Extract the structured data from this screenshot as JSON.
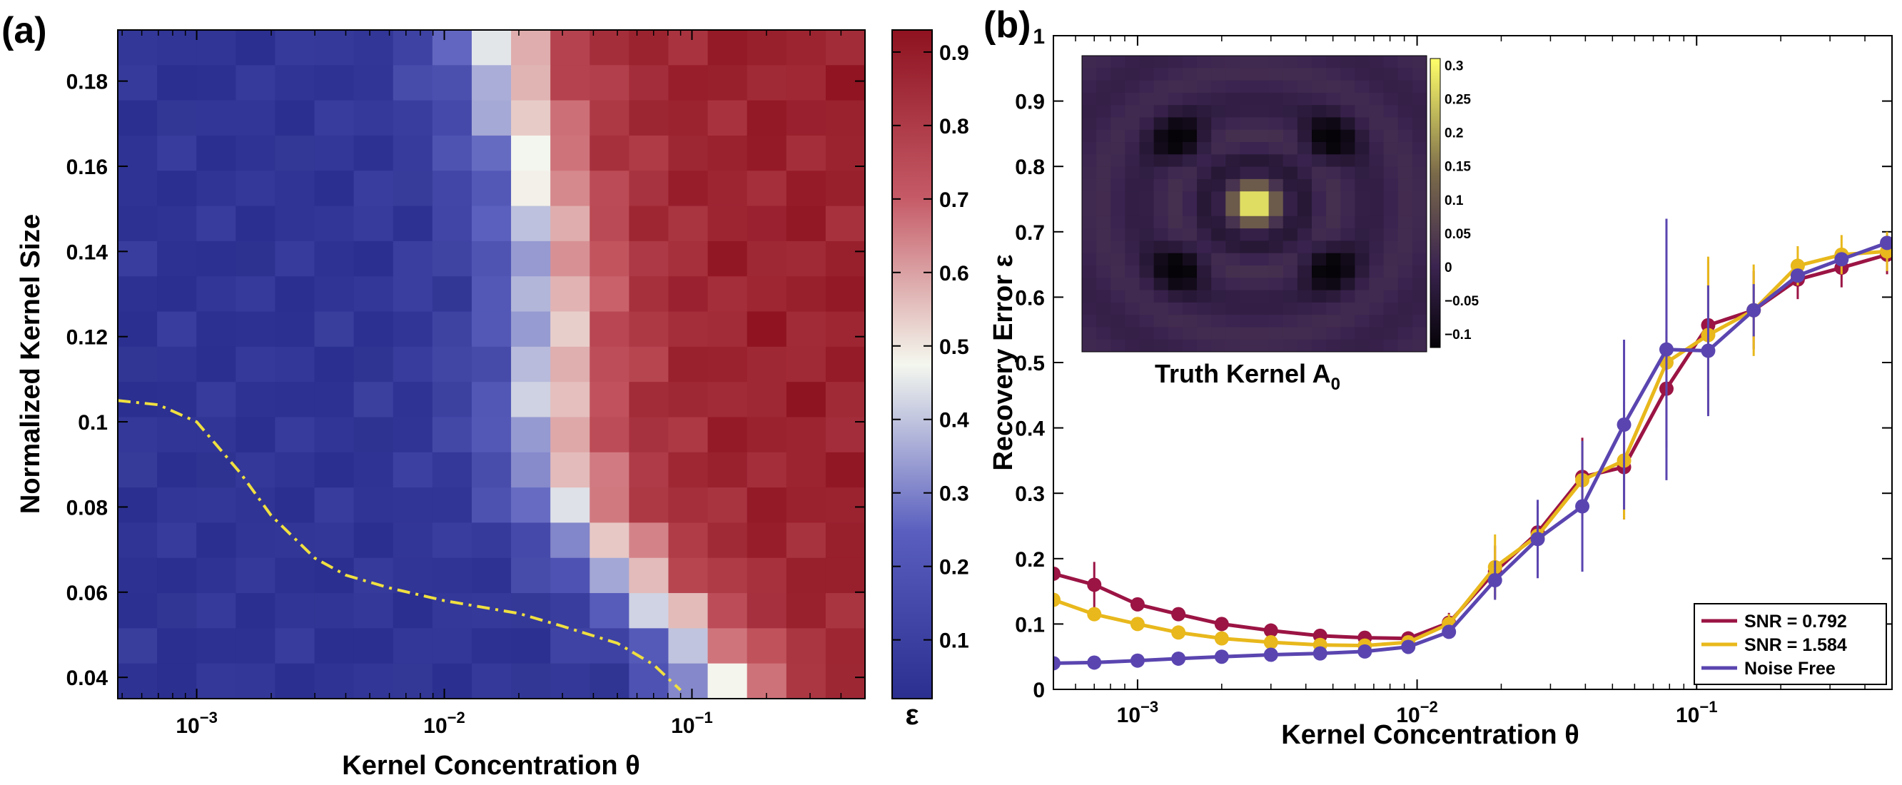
{
  "panel_labels": {
    "a": "(a)",
    "b": "(b)"
  },
  "colors": {
    "heat_low": "#2b2f8f",
    "heat_mid": "#f4f7ee",
    "heat_high": "#8e1220",
    "snr_0792": "#9b1444",
    "snr_1584": "#e8b81c",
    "noise_free": "#5a45b0",
    "threshold_curve": "#f0e040"
  },
  "chart_data": [
    {
      "type": "heatmap",
      "panel": "(a)",
      "xlabel": "Kernel Concentration θ",
      "ylabel": "Normalized Kernel Size",
      "xscale": "log",
      "xlim": [
        0.00048,
        0.5
      ],
      "ylim": [
        0.035,
        0.192
      ],
      "x_ticks": [
        {
          "value": 0.001,
          "base": "10",
          "exp": "−3"
        },
        {
          "value": 0.01,
          "base": "10",
          "exp": "−2"
        },
        {
          "value": 0.1,
          "base": "10",
          "exp": "−1"
        }
      ],
      "y_ticks": [
        "0.04",
        "0.06",
        "0.08",
        "0.1",
        "0.12",
        "0.14",
        "0.16",
        "0.18"
      ],
      "colorbar": {
        "label": "ε",
        "ticks": [
          "0.1",
          "0.2",
          "0.3",
          "0.4",
          "0.5",
          "0.6",
          "0.7",
          "0.8",
          "0.9"
        ],
        "range": [
          0.02,
          0.93
        ]
      },
      "grid_cols": 19,
      "grid_rows": 19,
      "transition": {
        "kernel_size": [
          0.04,
          0.06,
          0.08,
          0.1,
          0.12,
          0.14,
          0.16,
          0.18,
          0.19
        ],
        "theta": [
          0.13,
          0.06,
          0.032,
          0.025,
          0.027,
          0.026,
          0.022,
          0.018,
          0.016
        ],
        "width_decades": 0.38
      },
      "threshold_curve": {
        "theta": [
          0.00048,
          0.0007,
          0.001,
          0.0015,
          0.002,
          0.003,
          0.004,
          0.006,
          0.01,
          0.02,
          0.03,
          0.05,
          0.07,
          0.09
        ],
        "kernel_size": [
          0.105,
          0.104,
          0.1,
          0.088,
          0.078,
          0.068,
          0.064,
          0.061,
          0.058,
          0.055,
          0.052,
          0.048,
          0.043,
          0.037
        ]
      }
    },
    {
      "type": "line",
      "panel": "(b)",
      "xlabel": "Kernel Concentration θ",
      "ylabel": "Recovery Error ε",
      "xscale": "log",
      "xlim": [
        0.0005,
        0.5
      ],
      "ylim": [
        0,
        1
      ],
      "x_ticks": [
        {
          "value": 0.001,
          "base": "10",
          "exp": "−3"
        },
        {
          "value": 0.01,
          "base": "10",
          "exp": "−2"
        },
        {
          "value": 0.1,
          "base": "10",
          "exp": "−1"
        }
      ],
      "y_ticks": [
        "0",
        "0.1",
        "0.2",
        "0.3",
        "0.4",
        "0.5",
        "0.6",
        "0.7",
        "0.8",
        "0.9",
        "1"
      ],
      "x": [
        0.0005,
        0.0007,
        0.001,
        0.0014,
        0.002,
        0.003,
        0.0045,
        0.0065,
        0.0093,
        0.013,
        0.019,
        0.027,
        0.039,
        0.055,
        0.078,
        0.11,
        0.16,
        0.23,
        0.33,
        0.48
      ],
      "series": [
        {
          "name": "SNR = 0.792",
          "color": "#9b1444",
          "values": [
            0.177,
            0.16,
            0.13,
            0.115,
            0.1,
            0.09,
            0.082,
            0.079,
            0.078,
            0.102,
            0.18,
            0.24,
            0.325,
            0.34,
            0.46,
            0.557,
            0.58,
            0.627,
            0.645,
            0.665
          ],
          "errors": [
            0,
            0.035,
            0,
            0,
            0,
            0,
            0,
            0,
            0,
            0.015,
            0.04,
            0.04,
            0.06,
            0.08,
            0.09,
            0.1,
            0.06,
            0.03,
            0.03,
            0.03
          ]
        },
        {
          "name": "SNR = 1.584",
          "color": "#e8b81c",
          "values": [
            0.137,
            0.115,
            0.1,
            0.087,
            0.078,
            0.072,
            0.068,
            0.067,
            0.072,
            0.1,
            0.187,
            0.235,
            0.32,
            0.35,
            0.5,
            0.542,
            0.58,
            0.648,
            0.665,
            0.67
          ],
          "errors": [
            0,
            0,
            0,
            0,
            0,
            0,
            0,
            0,
            0,
            0.015,
            0.05,
            0.04,
            0.06,
            0.09,
            0.12,
            0.12,
            0.07,
            0.03,
            0.03,
            0.03
          ]
        },
        {
          "name": "Noise Free",
          "color": "#5a45b0",
          "values": [
            0.04,
            0.041,
            0.044,
            0.047,
            0.05,
            0.053,
            0.055,
            0.058,
            0.065,
            0.088,
            0.167,
            0.23,
            0.28,
            0.405,
            0.52,
            0.518,
            0.58,
            0.633,
            0.658,
            0.683
          ],
          "errors": [
            0,
            0,
            0,
            0,
            0,
            0,
            0,
            0,
            0,
            0,
            0.03,
            0.06,
            0.1,
            0.13,
            0.2,
            0.1,
            0.04,
            0,
            0,
            0
          ]
        }
      ],
      "legend": {
        "position": "bottom-right"
      },
      "inset": {
        "type": "heatmap",
        "title_main": "Truth Kernel A",
        "title_sub": "0",
        "grid": 24,
        "colorbar_ticks": [
          "0.3",
          "0.25",
          "0.2",
          "0.15",
          "0.1",
          "0.05",
          "0",
          "−0.05",
          "−0.1"
        ],
        "colorbar_range": [
          -0.12,
          0.31
        ],
        "color_low": "#050308",
        "color_mid": "#3b2450",
        "color_high": "#ffff6a"
      }
    }
  ]
}
